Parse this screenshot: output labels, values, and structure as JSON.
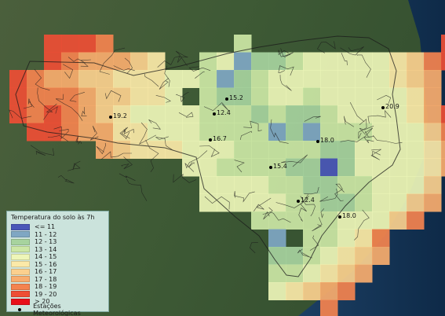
{
  "legend": {
    "title": "Temperatura do solo às 7h",
    "classes": [
      {
        "label": "<= 11",
        "color": "#4a57b8"
      },
      {
        "label": "11 - 12",
        "color": "#7fa7c3"
      },
      {
        "label": "12 - 13",
        "color": "#a7d39e"
      },
      {
        "label": "13 - 14",
        "color": "#cce7a5"
      },
      {
        "label": "14 - 15",
        "color": "#eef6b8"
      },
      {
        "label": "15 - 16",
        "color": "#fbe9a8"
      },
      {
        "label": "16 - 17",
        "color": "#fbd08e"
      },
      {
        "label": "17 - 18",
        "color": "#f8ad6e"
      },
      {
        "label": "18 - 19",
        "color": "#f4834f"
      },
      {
        "label": "19 - 20",
        "color": "#ee4e35"
      },
      {
        "label": "> 20",
        "color": "#e8101a"
      }
    ],
    "stations_label": "Estações Meteorológicas"
  },
  "stations": [
    {
      "value": "15.2"
    },
    {
      "value": "12.4"
    },
    {
      "value": "19.2"
    },
    {
      "value": "16.7"
    },
    {
      "value": "18.0"
    },
    {
      "value": "15.4"
    },
    {
      "value": "12.4"
    },
    {
      "value": "18.0"
    },
    {
      "value": "20.9"
    }
  ]
}
